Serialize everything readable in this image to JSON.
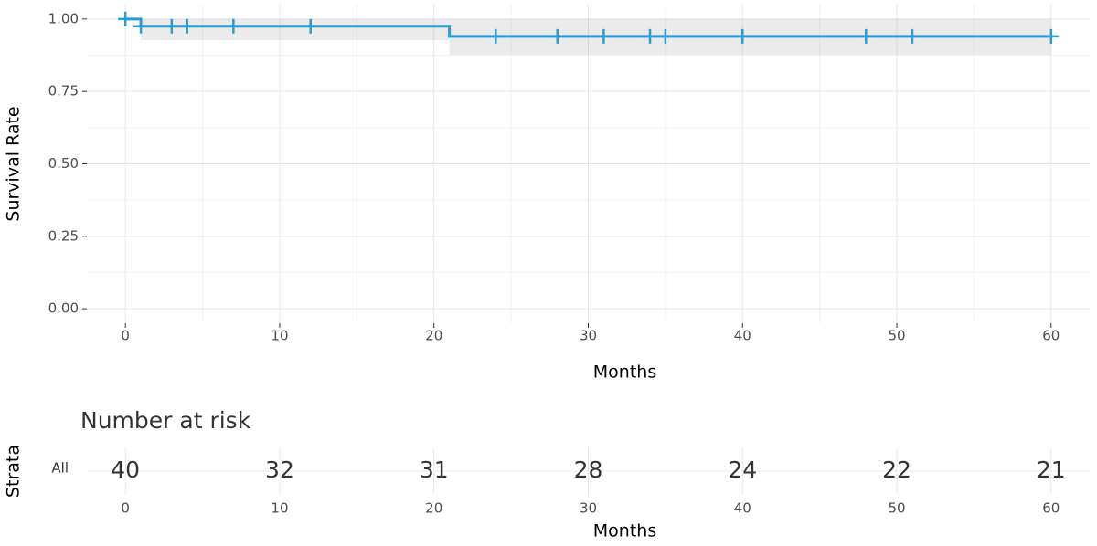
{
  "chart_data": [
    {
      "type": "km",
      "y_label": "Survival Rate",
      "x_label": "Months",
      "xlim": [
        -2.5,
        62.5
      ],
      "ylim": [
        -0.05,
        1.05
      ],
      "xticks": [
        0,
        10,
        20,
        30,
        40,
        50,
        60
      ],
      "yticks": [
        {
          "value": 0,
          "label": "0.00"
        },
        {
          "value": 0.25,
          "label": "0.25"
        },
        {
          "value": 0.5,
          "label": "0.50"
        },
        {
          "value": 0.75,
          "label": "0.75"
        },
        {
          "value": 1,
          "label": "1.00"
        }
      ],
      "grid": true,
      "series": [
        {
          "name": "All",
          "color": "#2b9bd6",
          "x": [
            0,
            1,
            21,
            60
          ],
          "values": [
            1,
            0.975,
            0.94,
            0.94
          ],
          "ci_lower": [
            1,
            0.927,
            0.877,
            0.877
          ],
          "ci_upper": [
            1,
            1,
            1,
            1
          ],
          "censor_x": [
            0,
            1,
            3,
            4,
            7,
            12,
            24,
            28,
            31,
            34,
            35,
            40,
            48,
            51,
            60
          ],
          "censor_values": [
            1,
            0.975,
            0.975,
            0.975,
            0.975,
            0.975,
            0.94,
            0.94,
            0.94,
            0.94,
            0.94,
            0.94,
            0.94,
            0.94,
            0.94
          ]
        }
      ]
    },
    {
      "type": "risk_table",
      "title": "Number at risk",
      "y_label": "Strata",
      "x_label": "Months",
      "xlim": [
        -2.5,
        62.5
      ],
      "xticks": [
        0,
        10,
        20,
        30,
        40,
        50,
        60
      ],
      "series": [
        {
          "name": "All",
          "color": "#2b9bd6",
          "x": [
            0,
            10,
            20,
            30,
            40,
            50,
            60
          ],
          "values": [
            40,
            32,
            31,
            28,
            24,
            22,
            21
          ]
        }
      ]
    }
  ]
}
